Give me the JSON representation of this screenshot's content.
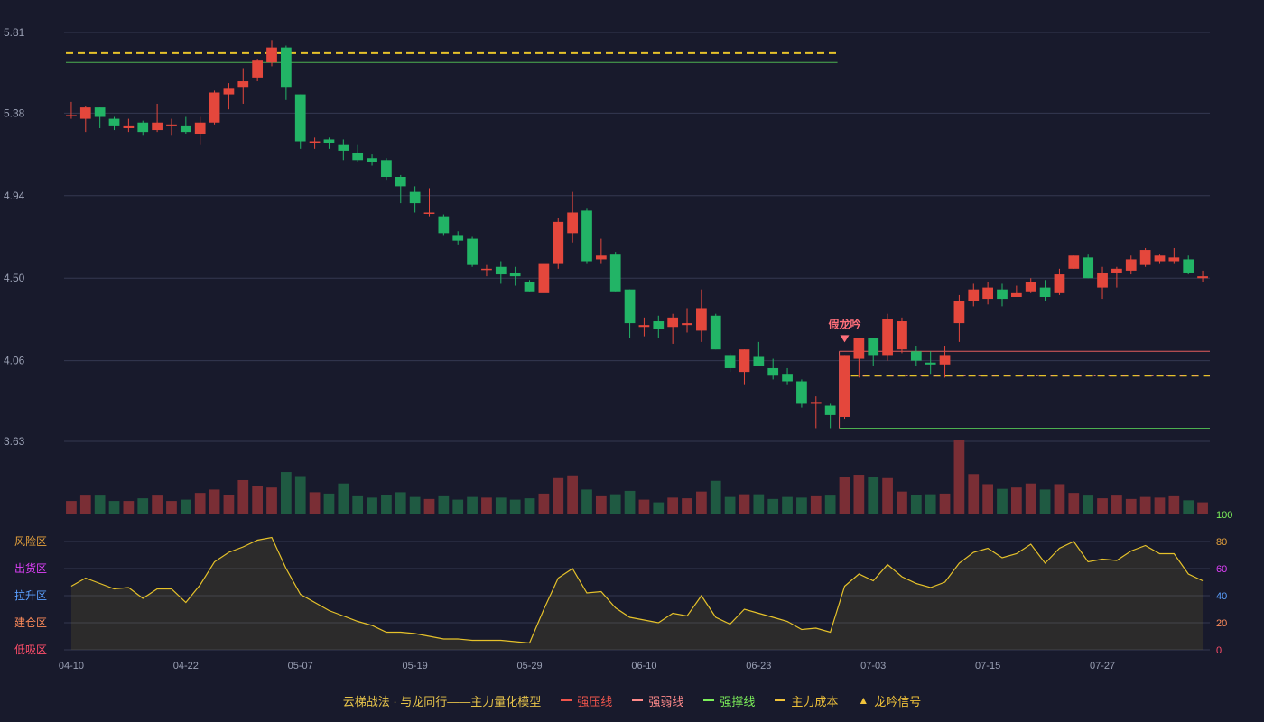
{
  "chart_data": {
    "type": "candlestick",
    "y_ticks": [
      "5.81",
      "5.38",
      "4.94",
      "4.50",
      "4.06",
      "3.63"
    ],
    "y_range": [
      3.63,
      5.81
    ],
    "x_ticks": [
      {
        "label": "04-10",
        "index": 0
      },
      {
        "label": "04-22",
        "index": 8
      },
      {
        "label": "05-07",
        "index": 16
      },
      {
        "label": "05-19",
        "index": 24
      },
      {
        "label": "05-29",
        "index": 32
      },
      {
        "label": "06-10",
        "index": 40
      },
      {
        "label": "06-23",
        "index": 48
      },
      {
        "label": "07-03",
        "index": 56
      },
      {
        "label": "07-15",
        "index": 64
      },
      {
        "label": "07-27",
        "index": 72
      }
    ],
    "candles": [
      [
        5.37,
        5.37,
        5.44,
        5.35
      ],
      [
        5.35,
        5.41,
        5.42,
        5.28
      ],
      [
        5.41,
        5.36,
        5.41,
        5.3
      ],
      [
        5.35,
        5.31,
        5.36,
        5.29
      ],
      [
        5.3,
        5.31,
        5.35,
        5.28
      ],
      [
        5.33,
        5.28,
        5.34,
        5.26
      ],
      [
        5.29,
        5.33,
        5.43,
        5.28
      ],
      [
        5.31,
        5.32,
        5.35,
        5.26
      ],
      [
        5.31,
        5.28,
        5.36,
        5.27
      ],
      [
        5.27,
        5.33,
        5.36,
        5.21
      ],
      [
        5.33,
        5.49,
        5.5,
        5.32
      ],
      [
        5.48,
        5.51,
        5.54,
        5.4
      ],
      [
        5.52,
        5.55,
        5.62,
        5.43
      ],
      [
        5.57,
        5.66,
        5.67,
        5.55
      ],
      [
        5.65,
        5.73,
        5.77,
        5.63
      ],
      [
        5.73,
        5.52,
        5.74,
        5.45
      ],
      [
        5.48,
        5.23,
        5.48,
        5.19
      ],
      [
        5.22,
        5.23,
        5.25,
        5.19
      ],
      [
        5.24,
        5.22,
        5.25,
        5.19
      ],
      [
        5.21,
        5.18,
        5.24,
        5.13
      ],
      [
        5.17,
        5.13,
        5.21,
        5.12
      ],
      [
        5.14,
        5.12,
        5.16,
        5.1
      ],
      [
        5.13,
        5.04,
        5.14,
        5.02
      ],
      [
        5.04,
        4.99,
        5.05,
        4.9
      ],
      [
        4.96,
        4.9,
        4.99,
        4.85
      ],
      [
        4.85,
        4.85,
        4.98,
        4.83
      ],
      [
        4.83,
        4.74,
        4.84,
        4.73
      ],
      [
        4.73,
        4.7,
        4.75,
        4.68
      ],
      [
        4.71,
        4.57,
        4.72,
        4.56
      ],
      [
        4.55,
        4.55,
        4.57,
        4.51
      ],
      [
        4.56,
        4.52,
        4.59,
        4.47
      ],
      [
        4.53,
        4.51,
        4.56,
        4.46
      ],
      [
        4.48,
        4.43,
        4.49,
        4.43
      ],
      [
        4.42,
        4.58,
        4.58,
        4.42
      ],
      [
        4.58,
        4.8,
        4.82,
        4.55
      ],
      [
        4.74,
        4.85,
        4.96,
        4.69
      ],
      [
        4.86,
        4.59,
        4.87,
        4.58
      ],
      [
        4.6,
        4.62,
        4.71,
        4.58
      ],
      [
        4.63,
        4.43,
        4.64,
        4.43
      ],
      [
        4.44,
        4.26,
        4.44,
        4.18
      ],
      [
        4.24,
        4.25,
        4.29,
        4.19
      ],
      [
        4.27,
        4.23,
        4.3,
        4.18
      ],
      [
        4.24,
        4.29,
        4.31,
        4.15
      ],
      [
        4.25,
        4.26,
        4.34,
        4.21
      ],
      [
        4.22,
        4.34,
        4.44,
        4.16
      ],
      [
        4.3,
        4.12,
        4.31,
        4.12
      ],
      [
        4.09,
        4.02,
        4.1,
        4.0
      ],
      [
        4.0,
        4.12,
        4.12,
        3.93
      ],
      [
        4.08,
        4.03,
        4.16,
        4.03
      ],
      [
        4.02,
        3.98,
        4.07,
        3.96
      ],
      [
        3.99,
        3.95,
        4.02,
        3.93
      ],
      [
        3.95,
        3.83,
        3.96,
        3.81
      ],
      [
        3.83,
        3.84,
        3.87,
        3.7
      ],
      [
        3.82,
        3.77,
        3.83,
        3.7
      ],
      [
        3.76,
        4.09,
        4.09,
        3.75
      ],
      [
        4.07,
        4.18,
        4.18,
        3.97
      ],
      [
        4.18,
        4.09,
        4.18,
        4.03
      ],
      [
        4.09,
        4.28,
        4.31,
        4.06
      ],
      [
        4.12,
        4.27,
        4.29,
        4.1
      ],
      [
        4.11,
        4.06,
        4.14,
        4.03
      ],
      [
        4.05,
        4.04,
        4.11,
        3.99
      ],
      [
        4.04,
        4.09,
        4.14,
        3.97
      ],
      [
        4.26,
        4.38,
        4.41,
        4.16
      ],
      [
        4.38,
        4.44,
        4.47,
        4.35
      ],
      [
        4.39,
        4.45,
        4.48,
        4.36
      ],
      [
        4.44,
        4.39,
        4.47,
        4.35
      ],
      [
        4.4,
        4.42,
        4.46,
        4.4
      ],
      [
        4.43,
        4.48,
        4.5,
        4.42
      ],
      [
        4.45,
        4.4,
        4.49,
        4.38
      ],
      [
        4.42,
        4.52,
        4.55,
        4.41
      ],
      [
        4.55,
        4.62,
        4.62,
        4.55
      ],
      [
        4.61,
        4.5,
        4.63,
        4.5
      ],
      [
        4.45,
        4.53,
        4.56,
        4.39
      ],
      [
        4.53,
        4.55,
        4.56,
        4.45
      ],
      [
        4.54,
        4.6,
        4.62,
        4.52
      ],
      [
        4.57,
        4.65,
        4.66,
        4.56
      ],
      [
        4.59,
        4.62,
        4.63,
        4.58
      ],
      [
        4.59,
        4.61,
        4.66,
        4.58
      ],
      [
        4.6,
        4.53,
        4.62,
        4.52
      ],
      [
        4.5,
        4.51,
        4.54,
        4.48
      ]
    ],
    "volumes": [
      20,
      28,
      28,
      20,
      20,
      24,
      28,
      20,
      22,
      32,
      37,
      29,
      51,
      42,
      40,
      63,
      57,
      33,
      31,
      46,
      27,
      25,
      29,
      33,
      26,
      23,
      27,
      22,
      26,
      25,
      25,
      22,
      24,
      31,
      54,
      58,
      37,
      27,
      30,
      35,
      22,
      18,
      25,
      24,
      34,
      50,
      26,
      30,
      30,
      23,
      26,
      25,
      27,
      28,
      56,
      59,
      55,
      54,
      34,
      29,
      30,
      31,
      110,
      60,
      45,
      38,
      40,
      46,
      37,
      45,
      32,
      28,
      24,
      28,
      23,
      26,
      25,
      27,
      21,
      18
    ],
    "indicator_label_title": "云梯战法 · 与龙同行——主力量化模型",
    "indicator_values": [
      47,
      53,
      49,
      45,
      46,
      38,
      45,
      45,
      35,
      48,
      65,
      72,
      76,
      81,
      83,
      60,
      41,
      35,
      29,
      25,
      21,
      18,
      13,
      13,
      12,
      10,
      8,
      8,
      7,
      7,
      7,
      6,
      5,
      30,
      53,
      60,
      42,
      43,
      31,
      24,
      22,
      20,
      27,
      25,
      40,
      24,
      19,
      30,
      27,
      24,
      21,
      15,
      16,
      13,
      47,
      56,
      51,
      63,
      54,
      49,
      46,
      50,
      64,
      72,
      75,
      68,
      71,
      78,
      64,
      75,
      80,
      65,
      67,
      66,
      73,
      77,
      71,
      71,
      56,
      51
    ],
    "right_axis_labels": [
      "100",
      "80",
      "60",
      "40",
      "20",
      "0"
    ],
    "zone_labels": [
      "风险区",
      "出货区",
      "拉升区",
      "建仓区",
      "低吸区"
    ],
    "signal_label": "假龙吟",
    "signal_index": 54,
    "segments": [
      {
        "role": "dash",
        "color": "#e6c22a",
        "value": 5.7,
        "from": 0,
        "to": 53
      },
      {
        "role": "solid",
        "color": "#4caf50",
        "value": 5.65,
        "from": 0,
        "to": 53
      },
      {
        "role": "solid",
        "color": "#e35c5c",
        "value": 4.11,
        "from": 54,
        "to": 80
      },
      {
        "role": "dash",
        "color": "#e6c22a",
        "value": 3.98,
        "from": 54,
        "to": 80
      },
      {
        "role": "solid",
        "color": "#4caf50",
        "value": 3.7,
        "from": 54,
        "to": 80
      }
    ],
    "colors": {
      "up": "#e4473c",
      "down": "#22b466",
      "line": "#e6c22a",
      "grid": "#343850",
      "axis": "#9aa0b4"
    }
  },
  "legend": {
    "title": "云梯战法 · 与龙同行——主力量化模型",
    "items": [
      {
        "label": "强压线",
        "color": "#f0554c",
        "style": "solid"
      },
      {
        "label": "强弱线",
        "color": "#ff8a8a",
        "style": "dash"
      },
      {
        "label": "强撑线",
        "color": "#7cf05a",
        "style": "solid"
      },
      {
        "label": "主力成本",
        "color": "#f0c23a",
        "style": "dash"
      },
      {
        "label": "龙吟信号",
        "color": "#f0c23a",
        "style": "triangle"
      }
    ]
  }
}
